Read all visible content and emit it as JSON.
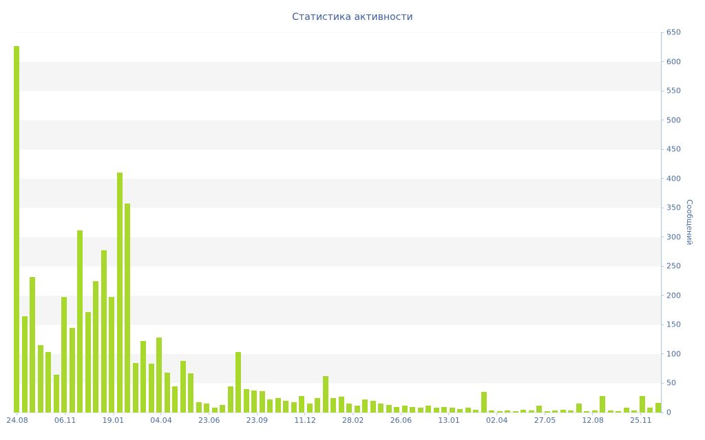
{
  "title": "Статистика активности",
  "chart_data": {
    "type": "bar",
    "title": "Статистика активности",
    "ylabel": "Сообщений",
    "xlabel": "",
    "ylim": [
      0,
      650
    ],
    "y_ticks": [
      0,
      50,
      100,
      150,
      200,
      250,
      300,
      350,
      400,
      450,
      500,
      550,
      600,
      650
    ],
    "x_tick_labels": [
      "24.08",
      "06.11",
      "19.01",
      "04.04",
      "23.06",
      "23.09",
      "11.12",
      "28.02",
      "26.06",
      "13.01",
      "02.04",
      "27.05",
      "12.08",
      "25.11"
    ],
    "values": [
      627,
      165,
      232,
      115,
      104,
      65,
      198,
      145,
      312,
      172,
      225,
      278,
      198,
      410,
      357,
      85,
      122,
      83,
      128,
      68,
      45,
      88,
      67,
      18,
      15,
      8,
      13,
      45,
      103,
      40,
      38,
      37,
      22,
      25,
      20,
      18,
      28,
      15,
      25,
      62,
      25,
      27,
      15,
      12,
      22,
      20,
      15,
      13,
      10,
      12,
      10,
      8,
      12,
      8,
      10,
      8,
      6,
      8,
      5,
      35,
      3,
      2,
      3,
      2,
      5,
      3,
      12,
      2,
      3,
      5,
      3,
      15,
      2,
      3,
      28,
      3,
      2,
      8,
      3,
      28,
      8,
      16
    ],
    "grid": "horizontal-bands",
    "legend_position": "none",
    "colors": {
      "bar": "#a8d82c",
      "axis_line": "#aec7e0",
      "tick_label": "#4b6c9e",
      "title": "#3f5e9e",
      "band": "#f5f5f5",
      "background": "#ffffff"
    }
  }
}
